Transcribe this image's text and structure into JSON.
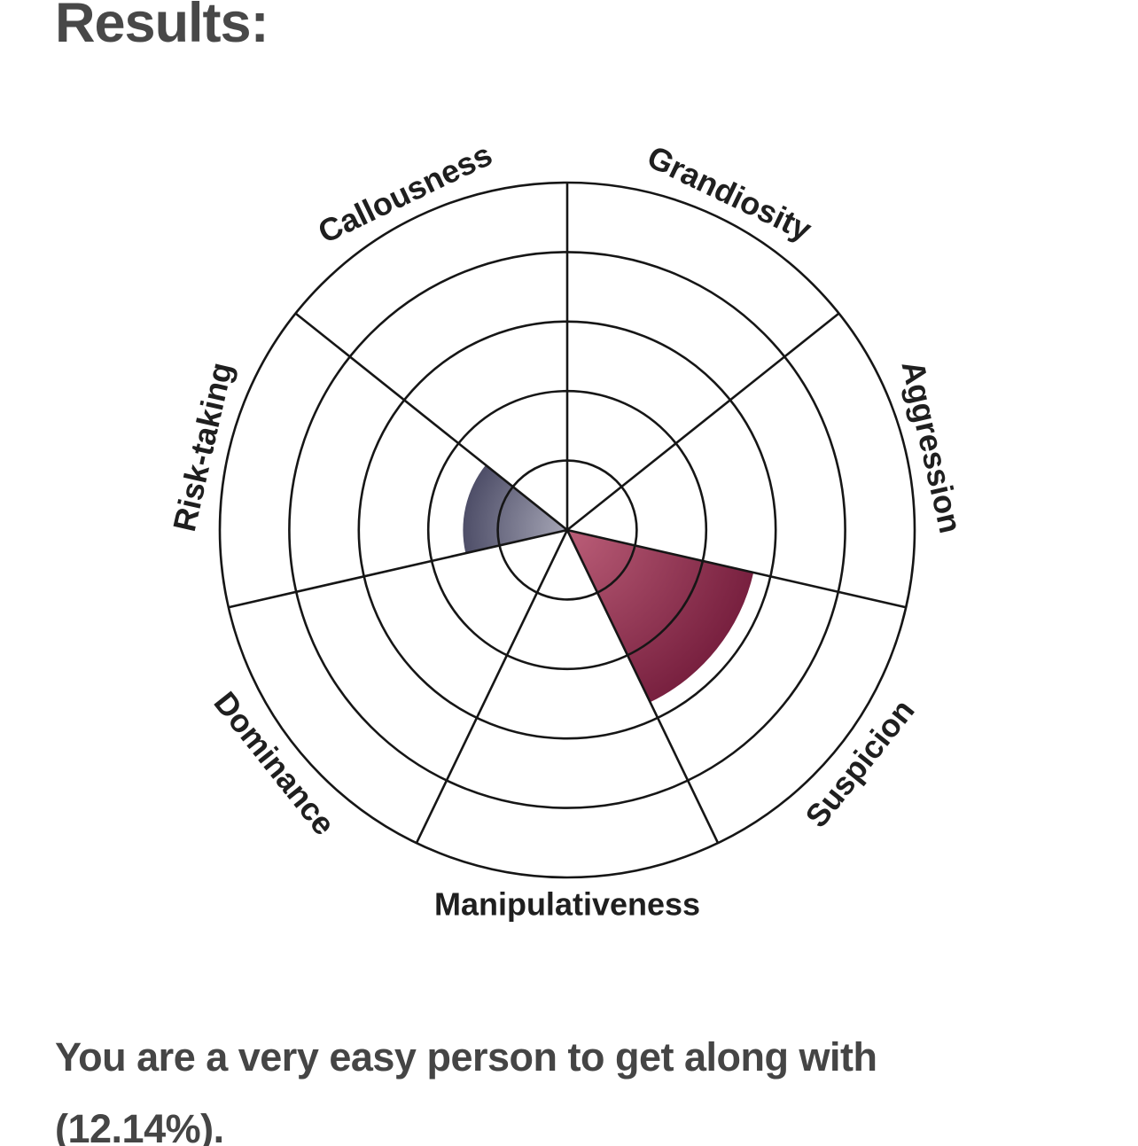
{
  "heading": "Results:",
  "result": {
    "full_text": "You are a very easy person to get along with (12.14%).",
    "lines": [
      "You are a very easy person to get along with",
      "(12.14%)."
    ],
    "score_percent": "12.14%"
  },
  "chart_data": {
    "type": "polar-area",
    "title": "",
    "categories": [
      "Grandiosity",
      "Aggression",
      "Suspicion",
      "Manipulativeness",
      "Dominance",
      "Risk-taking",
      "Callousness"
    ],
    "values": [
      0,
      0,
      55,
      0,
      0,
      30,
      0
    ],
    "value_range": [
      0,
      100
    ],
    "rings": 5,
    "direction": "clockwise",
    "start_at": "top",
    "grid": true,
    "legend_position": "none",
    "wedge_gradients": {
      "Suspicion": {
        "inner": "#bb5e78",
        "outer": "#78203f"
      },
      "Risk-taking": {
        "inner": "#a6a6b6",
        "outer": "#4e4e68"
      }
    },
    "grid_color": "#161616",
    "label_color": "#1f1f1f"
  },
  "colors": {
    "background": "#ffffff",
    "heading_text": "#484848",
    "result_text": "#454545"
  }
}
